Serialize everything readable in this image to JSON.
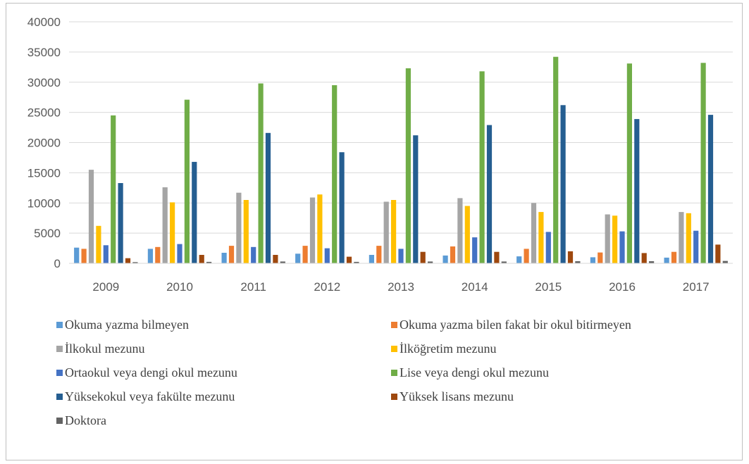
{
  "chart_data": {
    "type": "bar",
    "categories": [
      "2009",
      "2010",
      "2011",
      "2012",
      "2013",
      "2014",
      "2015",
      "2016",
      "2017"
    ],
    "ylim": [
      0,
      40000
    ],
    "yticks": [
      "0",
      "5000",
      "10000",
      "15000",
      "20000",
      "25000",
      "30000",
      "35000",
      "40000"
    ],
    "grid": true,
    "legend_position": "bottom",
    "series": [
      {
        "name": "Okuma yazma bilmeyen",
        "color": "#5b9bd5",
        "values": [
          2600,
          2400,
          1750,
          1600,
          1400,
          1300,
          1150,
          1000,
          950
        ]
      },
      {
        "name": "Okuma yazma bilen fakat bir okul bitirmeyen",
        "color": "#ed7d31",
        "values": [
          2400,
          2700,
          2900,
          2900,
          2900,
          2800,
          2400,
          1800,
          1900
        ]
      },
      {
        "name": "İlkokul mezunu",
        "color": "#a5a5a5",
        "values": [
          15500,
          12600,
          11700,
          10900,
          10200,
          10800,
          10000,
          8100,
          8500
        ]
      },
      {
        "name": "İlköğretim mezunu",
        "color": "#ffc000",
        "values": [
          6200,
          10100,
          10500,
          11400,
          10500,
          9500,
          8500,
          7900,
          8300
        ]
      },
      {
        "name": "Ortaokul veya dengi okul mezunu",
        "color": "#4472c4",
        "values": [
          3000,
          3200,
          2700,
          2500,
          2400,
          4300,
          5200,
          5300,
          5400
        ]
      },
      {
        "name": "Lise veya dengi okul mezunu",
        "color": "#70ad47",
        "values": [
          24500,
          27100,
          29800,
          29500,
          32300,
          31800,
          34200,
          33100,
          33200
        ]
      },
      {
        "name": "Yüksekokul veya fakülte mezunu",
        "color": "#255e91",
        "values": [
          13300,
          16800,
          21600,
          18400,
          21200,
          22900,
          26200,
          23900,
          24600
        ]
      },
      {
        "name": "Yüksek lisans mezunu",
        "color": "#9e480e",
        "values": [
          850,
          1400,
          1400,
          1100,
          1900,
          1900,
          2000,
          1700,
          3100
        ]
      },
      {
        "name": "Doktora",
        "color": "#636363",
        "values": [
          200,
          250,
          300,
          250,
          300,
          300,
          350,
          350,
          400
        ]
      }
    ]
  }
}
